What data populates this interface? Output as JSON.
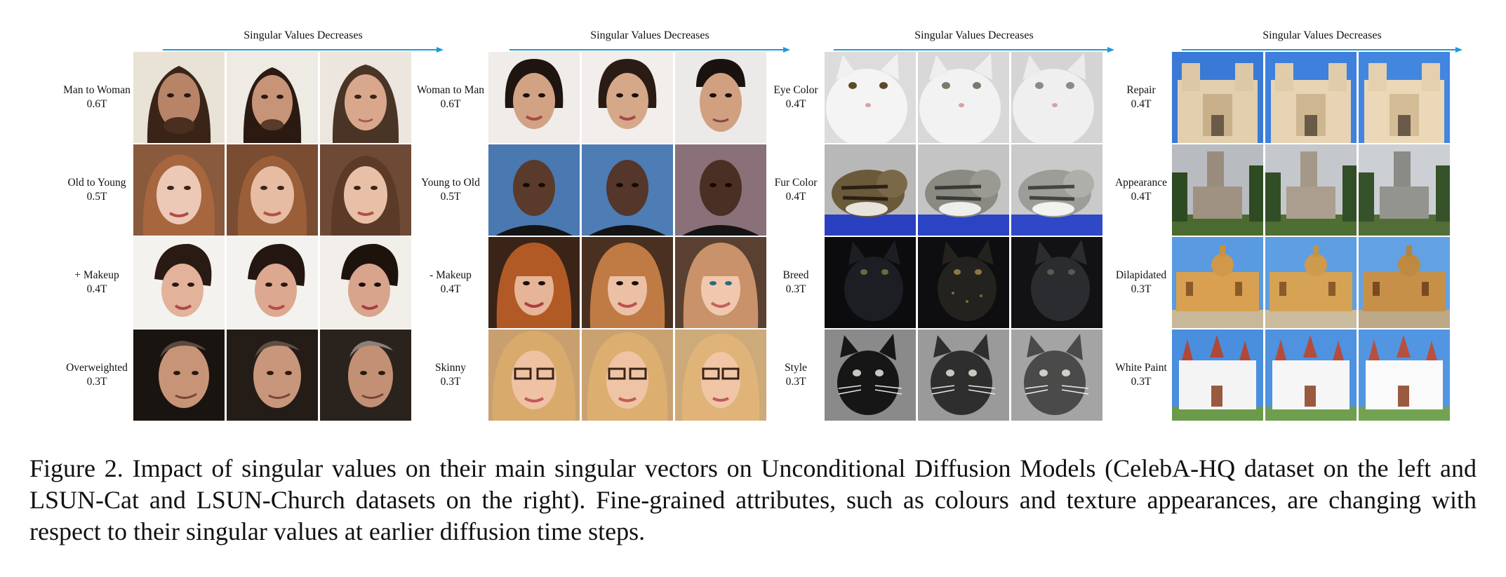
{
  "figure": {
    "panels": [
      {
        "header": "Singular Values Decreases",
        "rows": [
          {
            "attribute": "Man to Woman",
            "strength": "0.6T"
          },
          {
            "attribute": "Old to Young",
            "strength": "0.5T"
          },
          {
            "attribute": "+ Makeup",
            "strength": "0.4T"
          },
          {
            "attribute": "Overweighted",
            "strength": "0.3T"
          }
        ]
      },
      {
        "header": "Singular Values Decreases",
        "rows": [
          {
            "attribute": "Woman to Man",
            "strength": "0.6T"
          },
          {
            "attribute": "Young to Old",
            "strength": "0.5T"
          },
          {
            "attribute": "- Makeup",
            "strength": "0.4T"
          },
          {
            "attribute": "Skinny",
            "strength": "0.3T"
          }
        ]
      },
      {
        "header": "Singular Values Decreases",
        "rows": [
          {
            "attribute": "Eye Color",
            "strength": "0.4T"
          },
          {
            "attribute": "Fur Color",
            "strength": "0.4T"
          },
          {
            "attribute": "Breed",
            "strength": "0.3T"
          },
          {
            "attribute": "Style",
            "strength": "0.3T"
          }
        ]
      },
      {
        "header": "Singular Values Decreases",
        "rows": [
          {
            "attribute": "Repair",
            "strength": "0.4T"
          },
          {
            "attribute": "Appearance",
            "strength": "0.4T"
          },
          {
            "attribute": "Dilapidated",
            "strength": "0.3T"
          },
          {
            "attribute": "White Paint",
            "strength": "0.3T"
          }
        ]
      }
    ],
    "caption": "Figure 2. Impact of singular values on their main singular vectors on Unconditional Diffusion Models (CelebA-HQ dataset on the left and LSUN-Cat and LSUN-Church datasets on the right). Fine-grained attributes, such as colours and texture appearances, are changing with respect to their singular values at earlier diffusion time steps."
  },
  "colors": {
    "arrow": "#1e9ad6",
    "text": "#111111"
  }
}
